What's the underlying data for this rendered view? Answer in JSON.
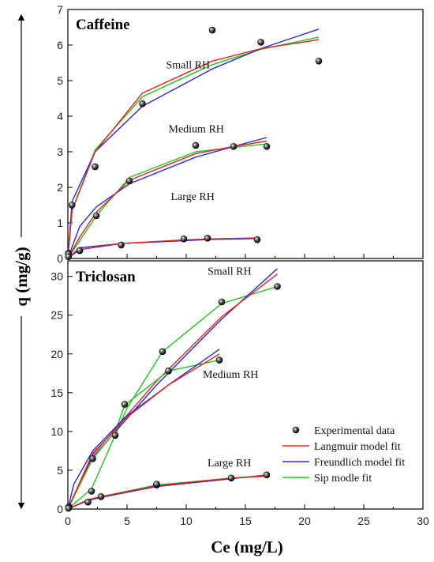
{
  "chart_data": {
    "type": "line",
    "xlabel": "Ce (mg/L)",
    "ylabel": "q (mg/g)",
    "xlim": [
      0,
      30
    ],
    "xticks": [
      0,
      5,
      10,
      15,
      20,
      25,
      30
    ],
    "legend": {
      "placement": "bottom-right of lower panel",
      "entries": [
        {
          "name": "Experimental data",
          "kind": "marker"
        },
        {
          "name": "Langmuir model fit",
          "kind": "line",
          "color": "#e8231f"
        },
        {
          "name": "Freundlich model fit",
          "kind": "line",
          "color": "#2a2ad6"
        },
        {
          "name": "Sip modle fit",
          "kind": "line",
          "color": "#22c322"
        }
      ]
    },
    "colors": {
      "langmuir": "#e8231f",
      "freundlich": "#2a2ad6",
      "sip": "#22c322",
      "marker": "#111111"
    },
    "panels": [
      {
        "title": "Caffeine",
        "ylim": [
          0,
          7
        ],
        "yticks": [
          0,
          1,
          2,
          3,
          4,
          5,
          6,
          7
        ],
        "groups": [
          {
            "label": "Small RH",
            "label_at": [
              8.3,
              5.35
            ],
            "experimental": [
              [
                0.05,
                0.15
              ],
              [
                0.35,
                1.5
              ],
              [
                2.3,
                2.58
              ],
              [
                6.3,
                4.35
              ],
              [
                12.2,
                6.42
              ],
              [
                16.3,
                6.08
              ],
              [
                21.2,
                5.55
              ]
            ],
            "langmuir": [
              [
                0,
                0
              ],
              [
                0.35,
                1.35
              ],
              [
                2.3,
                3.0
              ],
              [
                6.3,
                4.65
              ],
              [
                12.2,
                5.55
              ],
              [
                16.3,
                5.9
              ],
              [
                21.2,
                6.15
              ]
            ],
            "freundlich": [
              [
                0,
                0
              ],
              [
                0.35,
                1.6
              ],
              [
                2.3,
                3.0
              ],
              [
                6.3,
                4.28
              ],
              [
                12.2,
                5.33
              ],
              [
                16.3,
                5.9
              ],
              [
                21.2,
                6.45
              ]
            ],
            "sip": [
              [
                0,
                0
              ],
              [
                0.35,
                1.35
              ],
              [
                2.3,
                3.05
              ],
              [
                6.3,
                4.55
              ],
              [
                12.2,
                5.45
              ],
              [
                16.3,
                5.88
              ],
              [
                21.2,
                6.22
              ]
            ]
          },
          {
            "label": "Medium RH",
            "label_at": [
              8.5,
              3.55
            ],
            "experimental": [
              [
                0.05,
                0.12
              ],
              [
                1.0,
                0.22
              ],
              [
                2.4,
                1.2
              ],
              [
                5.2,
                2.18
              ],
              [
                10.8,
                3.18
              ],
              [
                14.0,
                3.15
              ],
              [
                16.8,
                3.15
              ]
            ],
            "langmuir": [
              [
                0,
                0
              ],
              [
                1.0,
                0.6
              ],
              [
                2.4,
                1.3
              ],
              [
                5.2,
                2.2
              ],
              [
                10.8,
                2.95
              ],
              [
                14.0,
                3.15
              ],
              [
                16.8,
                3.3
              ]
            ],
            "freundlich": [
              [
                0,
                0
              ],
              [
                1.0,
                0.9
              ],
              [
                2.4,
                1.45
              ],
              [
                5.2,
                2.1
              ],
              [
                10.8,
                2.85
              ],
              [
                14.0,
                3.15
              ],
              [
                16.8,
                3.4
              ]
            ],
            "sip": [
              [
                0,
                0
              ],
              [
                1.0,
                0.5
              ],
              [
                2.4,
                1.2
              ],
              [
                5.2,
                2.28
              ],
              [
                10.8,
                3.0
              ],
              [
                14.0,
                3.12
              ],
              [
                16.8,
                3.22
              ]
            ]
          },
          {
            "label": "Large RH",
            "label_at": [
              8.7,
              1.65
            ],
            "experimental": [
              [
                0.05,
                0.05
              ],
              [
                1.0,
                0.22
              ],
              [
                4.5,
                0.38
              ],
              [
                9.8,
                0.55
              ],
              [
                11.8,
                0.57
              ],
              [
                16.0,
                0.53
              ]
            ],
            "langmuir": [
              [
                0,
                0
              ],
              [
                1.0,
                0.25
              ],
              [
                4.5,
                0.42
              ],
              [
                9.8,
                0.52
              ],
              [
                11.8,
                0.55
              ],
              [
                16.0,
                0.58
              ]
            ],
            "freundlich": [
              [
                0,
                0
              ],
              [
                1.0,
                0.3
              ],
              [
                4.5,
                0.42
              ],
              [
                9.8,
                0.5
              ],
              [
                11.8,
                0.53
              ],
              [
                16.0,
                0.56
              ]
            ],
            "sip": [
              [
                0,
                0
              ],
              [
                1.0,
                0.25
              ],
              [
                4.5,
                0.42
              ],
              [
                9.8,
                0.52
              ],
              [
                11.8,
                0.55
              ],
              [
                16.0,
                0.57
              ]
            ]
          }
        ]
      },
      {
        "title": "Triclosan",
        "ylim": [
          0,
          32
        ],
        "yticks": [
          0,
          5,
          10,
          15,
          20,
          25,
          30
        ],
        "groups": [
          {
            "label": "Small RH",
            "label_at": [
              11.8,
              30.2
            ],
            "experimental": [
              [
                0.1,
                0.3
              ],
              [
                2.0,
                2.3
              ],
              [
                7.5,
                3.1
              ],
              [
                8.0,
                20.3
              ],
              [
                13.0,
                26.7
              ],
              [
                17.7,
                28.7
              ]
            ],
            "langmuir": [
              [
                0,
                0
              ],
              [
                2.0,
                6.8
              ],
              [
                7.5,
                16.5
              ],
              [
                13.0,
                24.8
              ],
              [
                17.7,
                30.3
              ]
            ],
            "freundlich": [
              [
                0,
                0
              ],
              [
                2.0,
                6.5
              ],
              [
                7.5,
                16.0
              ],
              [
                13.0,
                24.5
              ],
              [
                17.7,
                31.0
              ]
            ],
            "sip": [
              [
                0,
                0
              ],
              [
                2.0,
                2.6
              ],
              [
                5.0,
                13.0
              ],
              [
                8.0,
                20.3
              ],
              [
                13.0,
                26.5
              ],
              [
                17.7,
                28.7
              ]
            ]
          },
          {
            "label": "Medium RH",
            "label_at": [
              11.4,
              16.9
            ],
            "experimental": [
              [
                0.05,
                0.2
              ],
              [
                2.1,
                6.5
              ],
              [
                4.0,
                9.5
              ],
              [
                4.8,
                13.5
              ],
              [
                8.5,
                17.8
              ],
              [
                12.8,
                19.2
              ]
            ],
            "langmuir": [
              [
                0,
                0
              ],
              [
                2.1,
                7.2
              ],
              [
                4.0,
                10.2
              ],
              [
                4.8,
                11.6
              ],
              [
                8.5,
                16.0
              ],
              [
                12.8,
                20.0
              ]
            ],
            "freundlich": [
              [
                0,
                0
              ],
              [
                0.5,
                3.2
              ],
              [
                2.1,
                7.5
              ],
              [
                4.0,
                10.5
              ],
              [
                4.8,
                11.8
              ],
              [
                8.5,
                16.0
              ],
              [
                12.8,
                20.6
              ]
            ],
            "sip": [
              [
                0,
                0
              ],
              [
                2.1,
                6.5
              ],
              [
                4.0,
                10.0
              ],
              [
                4.8,
                13.4
              ],
              [
                8.5,
                17.8
              ],
              [
                12.8,
                19.2
              ]
            ]
          },
          {
            "label": "Large RH",
            "label_at": [
              11.8,
              5.5
            ],
            "experimental": [
              [
                0.05,
                0.1
              ],
              [
                1.7,
                0.9
              ],
              [
                2.8,
                1.6
              ],
              [
                7.5,
                3.2
              ],
              [
                13.8,
                4.0
              ],
              [
                16.8,
                4.4
              ]
            ],
            "langmuir": [
              [
                0,
                0
              ],
              [
                1.7,
                1.2
              ],
              [
                2.8,
                1.6
              ],
              [
                7.5,
                3.0
              ],
              [
                13.8,
                4.0
              ],
              [
                16.8,
                4.3
              ]
            ],
            "freundlich": [
              [
                0,
                0
              ],
              [
                1.7,
                1.1
              ],
              [
                2.8,
                1.5
              ],
              [
                7.5,
                2.9
              ],
              [
                13.8,
                3.9
              ],
              [
                16.8,
                4.4
              ]
            ],
            "sip": [
              [
                0,
                0
              ],
              [
                1.7,
                1.2
              ],
              [
                2.8,
                1.6
              ],
              [
                7.5,
                3.1
              ],
              [
                13.8,
                4.0
              ],
              [
                16.8,
                4.2
              ]
            ]
          }
        ]
      }
    ]
  }
}
